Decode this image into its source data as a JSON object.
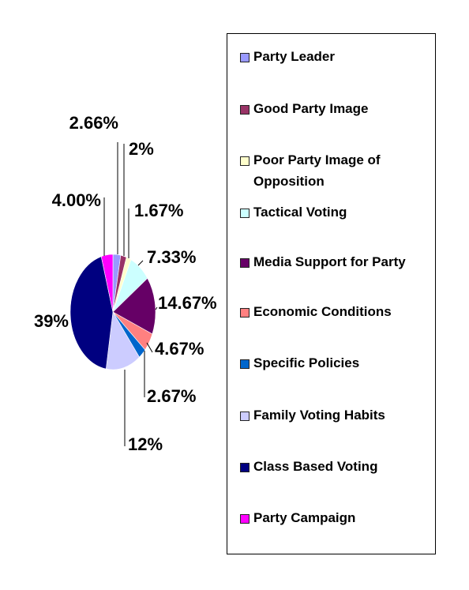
{
  "chart_data": {
    "type": "pie",
    "legend_position": "right",
    "slices": [
      {
        "name": "Party Leader",
        "value": 2.66,
        "label": "2.66%",
        "color": "#9999ff"
      },
      {
        "name": "Good Party Image",
        "value": 2.0,
        "label": "2%",
        "color": "#993366"
      },
      {
        "name": "Poor Party Image of Opposition",
        "value": 1.67,
        "label": "1.67%",
        "color": "#ffffcc"
      },
      {
        "name": "Tactical Voting",
        "value": 7.33,
        "label": "7.33%",
        "color": "#ccffff"
      },
      {
        "name": "Media Support for Party",
        "value": 14.67,
        "label": "14.67%",
        "color": "#660066"
      },
      {
        "name": "Economic Conditions",
        "value": 4.67,
        "label": "4.67%",
        "color": "#ff8080"
      },
      {
        "name": "Specific Policies",
        "value": 2.67,
        "label": "2.67%",
        "color": "#0066cc"
      },
      {
        "name": "Family Voting Habits",
        "value": 12,
        "label": "12%",
        "color": "#ccccff"
      },
      {
        "name": "Class Based Voting",
        "value": 39,
        "label": "39%",
        "color": "#000080"
      },
      {
        "name": "Party Campaign",
        "value": 4.0,
        "label": "4.00%",
        "color": "#ff00ff"
      }
    ]
  }
}
